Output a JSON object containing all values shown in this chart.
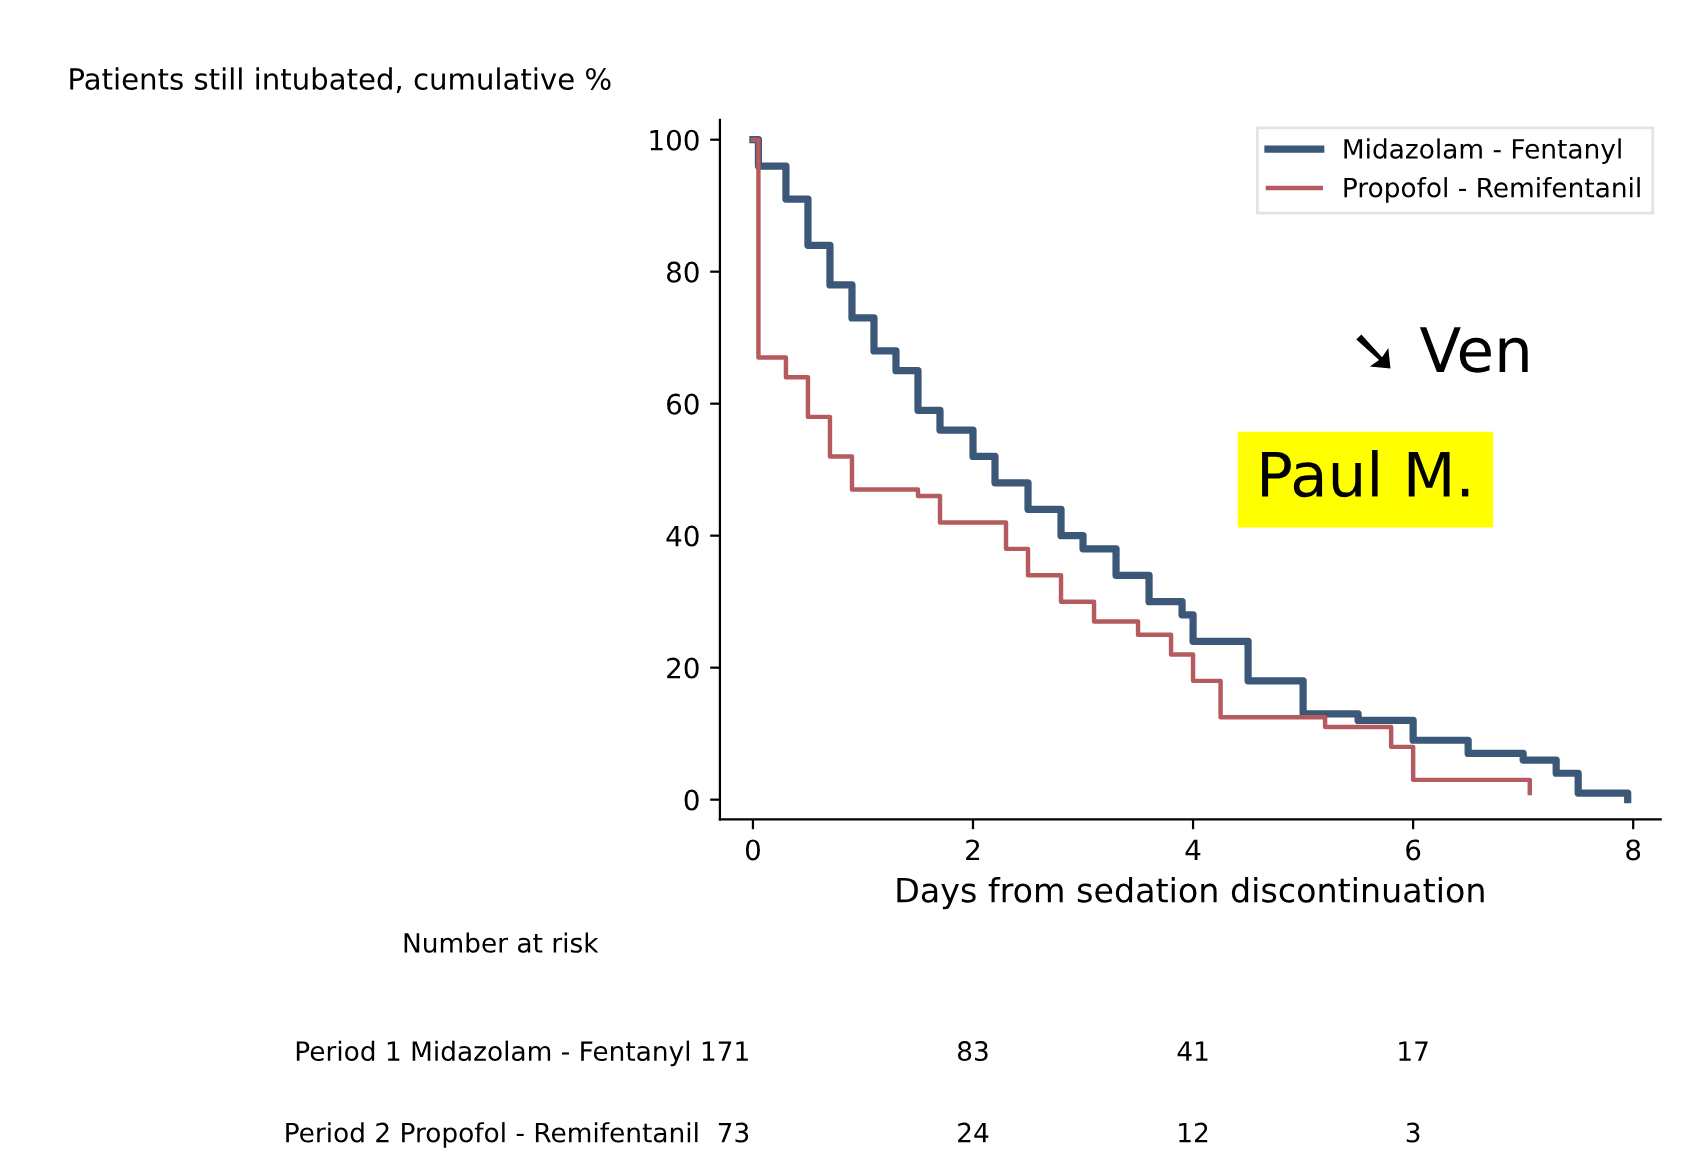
{
  "chart_data": {
    "type": "step",
    "title": "Patients still intubated, cumulative %",
    "xlabel": "Days from sedation discontinuation",
    "xlim": [
      -0.3,
      8.25
    ],
    "xticks": [
      0,
      2,
      4,
      6,
      8
    ],
    "ylim": [
      -3,
      103
    ],
    "yticks": [
      0,
      20,
      40,
      60,
      80,
      100
    ],
    "grid": false,
    "legend": "top right",
    "marker": "none",
    "line_style": "solid",
    "series": [
      {
        "name": "Midazolam - Fentanyl",
        "color": "#3b5878",
        "x": [
          0,
          0.05,
          0.3,
          0.5,
          0.7,
          0.9,
          1.1,
          1.3,
          1.5,
          1.7,
          2.0,
          2.2,
          2.5,
          2.8,
          3.0,
          3.3,
          3.6,
          3.9,
          4.0,
          4.5,
          5.0,
          5.5,
          6.0,
          6.5,
          7.0,
          7.3,
          7.5,
          7.95
        ],
        "values": [
          100,
          96,
          91,
          84,
          78,
          73,
          68,
          65,
          59,
          56,
          52,
          48,
          44,
          40,
          38,
          34,
          30,
          28,
          24,
          18,
          13,
          12,
          9,
          7,
          6,
          4,
          1,
          0
        ]
      },
      {
        "name": "Propofol - Remifentanil",
        "color": "#b55a5e",
        "x": [
          0,
          0.05,
          0.3,
          0.5,
          0.7,
          0.9,
          1.5,
          1.7,
          2.3,
          2.5,
          2.8,
          3.1,
          3.5,
          3.8,
          4.0,
          4.25,
          5.2,
          5.8,
          6.0,
          7.0,
          7.06
        ],
        "values": [
          100,
          67,
          64,
          58,
          52,
          47,
          46,
          42,
          38,
          34,
          30,
          27,
          25,
          22,
          18,
          12.5,
          11,
          8,
          3,
          3,
          1
        ]
      }
    ],
    "annotations": [
      "Number at risk",
      "Period 1 Midazolam - Fentanyl 171",
      "83",
      "41",
      "17",
      "Period 2 Propofol - Remifentanil  73",
      "24",
      "12",
      "3",
      "➘ Ven",
      "Paul M."
    ]
  }
}
